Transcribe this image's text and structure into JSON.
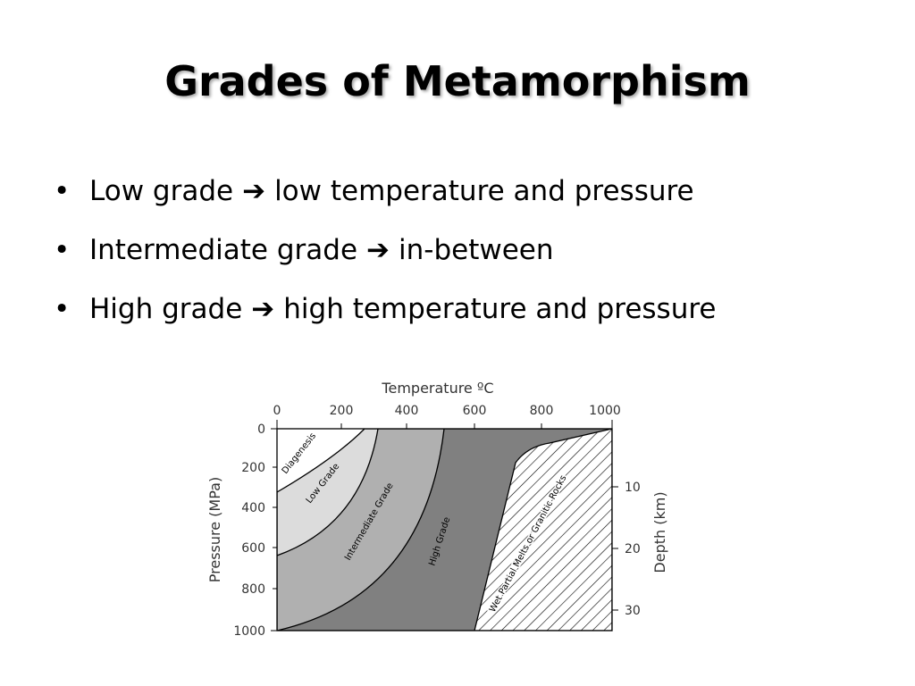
{
  "slide": {
    "title": "Grades of Metamorphism",
    "bullets": [
      {
        "lead": "Low grade",
        "arrow": "➔",
        "tail": "low temperature and pressure"
      },
      {
        "lead": "Intermediate grade",
        "arrow": "➔",
        "tail": "in-between"
      },
      {
        "lead": "High grade",
        "arrow": "➔",
        "tail": "high temperature and pressure"
      }
    ],
    "bullet_glyph": "•"
  },
  "diagram": {
    "top_axis_label": "Temperature ºC",
    "top_ticks": [
      "0",
      "200",
      "400",
      "600",
      "800",
      "1000"
    ],
    "left_axis_label": "Pressure (MPa)",
    "left_ticks": [
      "0",
      "200",
      "400",
      "600",
      "800",
      "1000"
    ],
    "right_axis_label": "Depth (km)",
    "right_ticks": [
      "10",
      "20",
      "30"
    ],
    "zones": {
      "diagenesis": "Diagenesis",
      "low": "Low Grade",
      "intermediate": "Intermediate Grade",
      "high": "High Grade",
      "melts": "Wet Partial Melts or Granitic Rocks"
    },
    "colors": {
      "diagenesis": "#ffffff",
      "low": "#dcdcdc",
      "intermediate": "#b0b0b0",
      "high": "#808080",
      "melts_hatch": "#000000"
    }
  }
}
